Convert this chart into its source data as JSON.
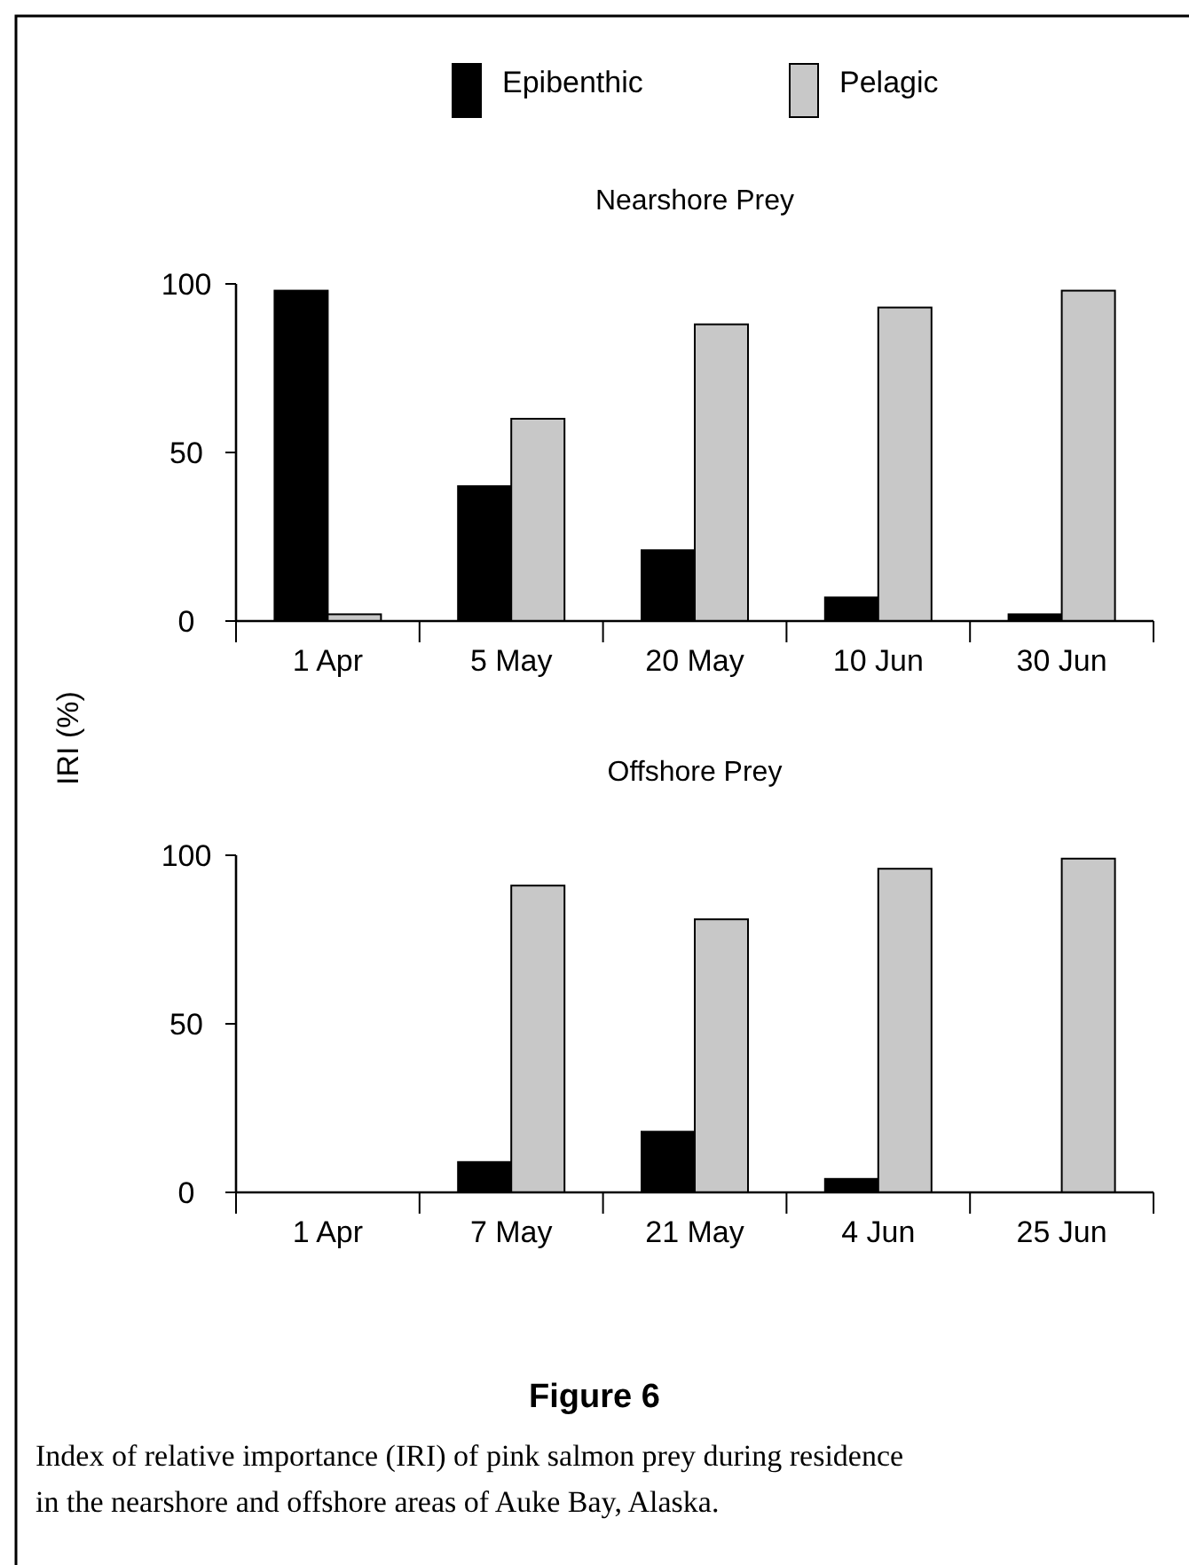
{
  "chart_data": [
    {
      "type": "bar",
      "title": "Nearshore Prey",
      "ylabel": "IRI (%)",
      "categories": [
        "1 Apr",
        "5 May",
        "20 May",
        "10 Jun",
        "30 Jun"
      ],
      "series": [
        {
          "name": "Epibenthic",
          "color": "#000000",
          "values": [
            98,
            40,
            21,
            7,
            2
          ]
        },
        {
          "name": "Pelagic",
          "color": "#c8c8c8",
          "values": [
            2,
            60,
            88,
            93,
            98
          ]
        }
      ],
      "ylim": [
        0,
        100
      ],
      "yticks": [
        0,
        50,
        100
      ],
      "legend": "top",
      "grid": false
    },
    {
      "type": "bar",
      "title": "Offshore Prey",
      "categories": [
        "1 Apr",
        "7 May",
        "21 May",
        "4 Jun",
        "25 Jun"
      ],
      "series": [
        {
          "color": "#000000",
          "values": [
            0,
            9,
            18,
            4,
            0
          ]
        },
        {
          "color": "#c8c8c8",
          "values": [
            0,
            91,
            81,
            96,
            99
          ]
        }
      ],
      "ylim": [
        0,
        100
      ],
      "yticks": [
        0,
        50,
        100
      ],
      "grid": false,
      "annotations": [
        "Figure 6",
        "Index of relative importance (IRI) of pink salmon prey during residence in the nearshore and offshore areas of Auke Bay, Alaska."
      ]
    }
  ]
}
